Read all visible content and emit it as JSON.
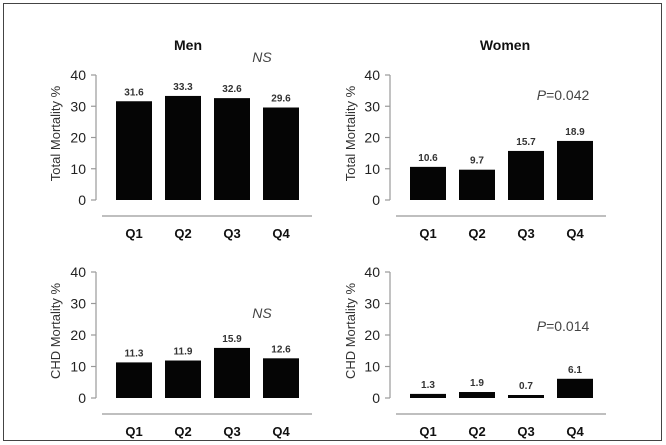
{
  "chart_data": [
    {
      "type": "bar",
      "title": "Men",
      "ylabel": "Total Mortality %",
      "categories": [
        "Q1",
        "Q2",
        "Q3",
        "Q4"
      ],
      "values": [
        31.6,
        33.3,
        32.6,
        29.6
      ],
      "data_labels": [
        "31.6",
        "33.3",
        "32.6",
        "29.6"
      ],
      "ylim": [
        0,
        40
      ],
      "yticks": [
        "0",
        "10",
        "20",
        "30",
        "40"
      ],
      "annotation": {
        "italic": "NS",
        "rest": ""
      }
    },
    {
      "type": "bar",
      "title": "Women",
      "ylabel": "Total Mortality %",
      "categories": [
        "Q1",
        "Q2",
        "Q3",
        "Q4"
      ],
      "values": [
        10.6,
        9.7,
        15.7,
        18.9
      ],
      "data_labels": [
        "10.6",
        "9.7",
        "15.7",
        "18.9"
      ],
      "ylim": [
        0,
        40
      ],
      "yticks": [
        "0",
        "10",
        "20",
        "30",
        "40"
      ],
      "annotation": {
        "italic": "P",
        "rest": "=0.042"
      }
    },
    {
      "type": "bar",
      "title": "",
      "ylabel": "CHD Mortality %",
      "categories": [
        "Q1",
        "Q2",
        "Q3",
        "Q4"
      ],
      "values": [
        11.3,
        11.9,
        15.9,
        12.6
      ],
      "data_labels": [
        "11.3",
        "11.9",
        "15.9",
        "12.6"
      ],
      "ylim": [
        0,
        40
      ],
      "yticks": [
        "0",
        "10",
        "20",
        "30",
        "40"
      ],
      "annotation": {
        "italic": "NS",
        "rest": ""
      }
    },
    {
      "type": "bar",
      "title": "",
      "ylabel": "CHD Mortality %",
      "categories": [
        "Q1",
        "Q2",
        "Q3",
        "Q4"
      ],
      "values": [
        1.3,
        1.9,
        0.7,
        6.1
      ],
      "data_labels": [
        "1.3",
        "1.9",
        "0.7",
        "6.1"
      ],
      "ylim": [
        0,
        40
      ],
      "yticks": [
        "0",
        "10",
        "20",
        "30",
        "40"
      ],
      "annotation": {
        "italic": "P",
        "rest": "=0.014"
      }
    }
  ]
}
